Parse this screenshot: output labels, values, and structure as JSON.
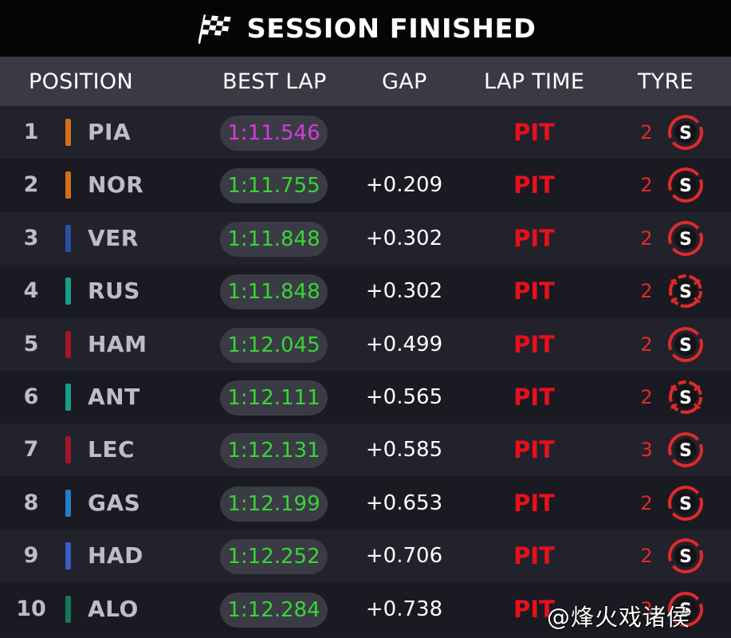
{
  "banner": {
    "title": "SESSION FINISHED",
    "icon": "checkered-flag-icon"
  },
  "columns": {
    "position": "POSITION",
    "best_lap": "BEST LAP",
    "gap": "GAP",
    "lap_time": "LAP TIME",
    "tyre": "TYRE"
  },
  "rows": [
    {
      "position": "1",
      "driver": "PIA",
      "team_color": "#d2711a",
      "best_lap": "1:11.546",
      "fastest": true,
      "gap": "",
      "lap_time": "PIT",
      "tyre_laps": "2",
      "tyre_compound": "S",
      "tyre_new": true
    },
    {
      "position": "2",
      "driver": "NOR",
      "team_color": "#d2711a",
      "best_lap": "1:11.755",
      "fastest": false,
      "gap": "+0.209",
      "lap_time": "PIT",
      "tyre_laps": "2",
      "tyre_compound": "S",
      "tyre_new": true
    },
    {
      "position": "3",
      "driver": "VER",
      "team_color": "#2b4fa2",
      "best_lap": "1:11.848",
      "fastest": false,
      "gap": "+0.302",
      "lap_time": "PIT",
      "tyre_laps": "2",
      "tyre_compound": "S",
      "tyre_new": true
    },
    {
      "position": "4",
      "driver": "RUS",
      "team_color": "#14a08a",
      "best_lap": "1:11.848",
      "fastest": false,
      "gap": "+0.302",
      "lap_time": "PIT",
      "tyre_laps": "2",
      "tyre_compound": "S",
      "tyre_new": false
    },
    {
      "position": "5",
      "driver": "HAM",
      "team_color": "#a3162a",
      "best_lap": "1:12.045",
      "fastest": false,
      "gap": "+0.499",
      "lap_time": "PIT",
      "tyre_laps": "2",
      "tyre_compound": "S",
      "tyre_new": true
    },
    {
      "position": "6",
      "driver": "ANT",
      "team_color": "#14a08a",
      "best_lap": "1:12.111",
      "fastest": false,
      "gap": "+0.565",
      "lap_time": "PIT",
      "tyre_laps": "2",
      "tyre_compound": "S",
      "tyre_new": false
    },
    {
      "position": "7",
      "driver": "LEC",
      "team_color": "#a3162a",
      "best_lap": "1:12.131",
      "fastest": false,
      "gap": "+0.585",
      "lap_time": "PIT",
      "tyre_laps": "3",
      "tyre_compound": "S",
      "tyre_new": true
    },
    {
      "position": "8",
      "driver": "GAS",
      "team_color": "#1f7fc7",
      "best_lap": "1:12.199",
      "fastest": false,
      "gap": "+0.653",
      "lap_time": "PIT",
      "tyre_laps": "2",
      "tyre_compound": "S",
      "tyre_new": true
    },
    {
      "position": "9",
      "driver": "HAD",
      "team_color": "#3a5fc0",
      "best_lap": "1:12.252",
      "fastest": false,
      "gap": "+0.706",
      "lap_time": "PIT",
      "tyre_laps": "2",
      "tyre_compound": "S",
      "tyre_new": true
    },
    {
      "position": "10",
      "driver": "ALO",
      "team_color": "#0f7a57",
      "best_lap": "1:12.284",
      "fastest": false,
      "gap": "+0.738",
      "lap_time": "PIT",
      "tyre_laps": "3",
      "tyre_compound": "S",
      "tyre_new": true
    }
  ],
  "colors": {
    "fastest_lap": "#d43cd6",
    "best_lap": "#39d437",
    "pit": "#e8101b",
    "soft_tyre": "#e02a2a"
  },
  "watermark": "@烽火戏诸侯"
}
